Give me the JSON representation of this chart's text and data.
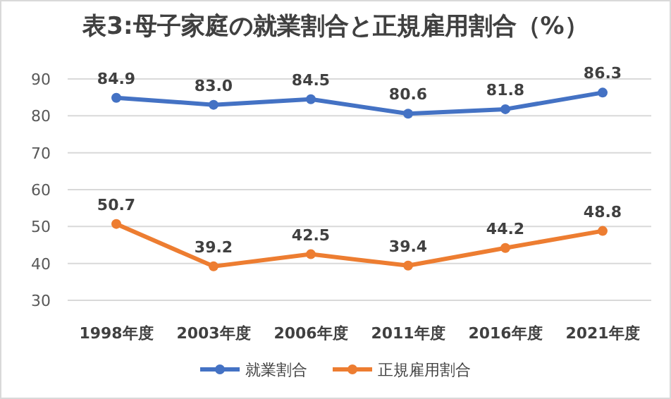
{
  "chart_data": {
    "type": "line",
    "title": "表3:母子家庭の就業割合と正規雇用割合（%）",
    "categories": [
      "1998年度",
      "2003年度",
      "2006年度",
      "2011年度",
      "2016年度",
      "2021年度"
    ],
    "series": [
      {
        "name": "就業割合",
        "color": "#4472c4",
        "values": [
          84.9,
          83.0,
          84.5,
          80.6,
          81.8,
          86.3
        ],
        "value_labels": [
          "84.9",
          "83.0",
          "84.5",
          "80.6",
          "81.8",
          "86.3"
        ]
      },
      {
        "name": "正規雇用割合",
        "color": "#ed7d31",
        "values": [
          50.7,
          39.2,
          42.5,
          39.4,
          44.2,
          48.8
        ],
        "value_labels": [
          "50.7",
          "39.2",
          "42.5",
          "39.4",
          "44.2",
          "48.8"
        ]
      }
    ],
    "ylim": [
      30,
      90
    ],
    "yticks": [
      30,
      40,
      50,
      60,
      70,
      80,
      90
    ],
    "grid": "y",
    "legend": "bottom",
    "marker": "circle",
    "line_style": "solid"
  }
}
